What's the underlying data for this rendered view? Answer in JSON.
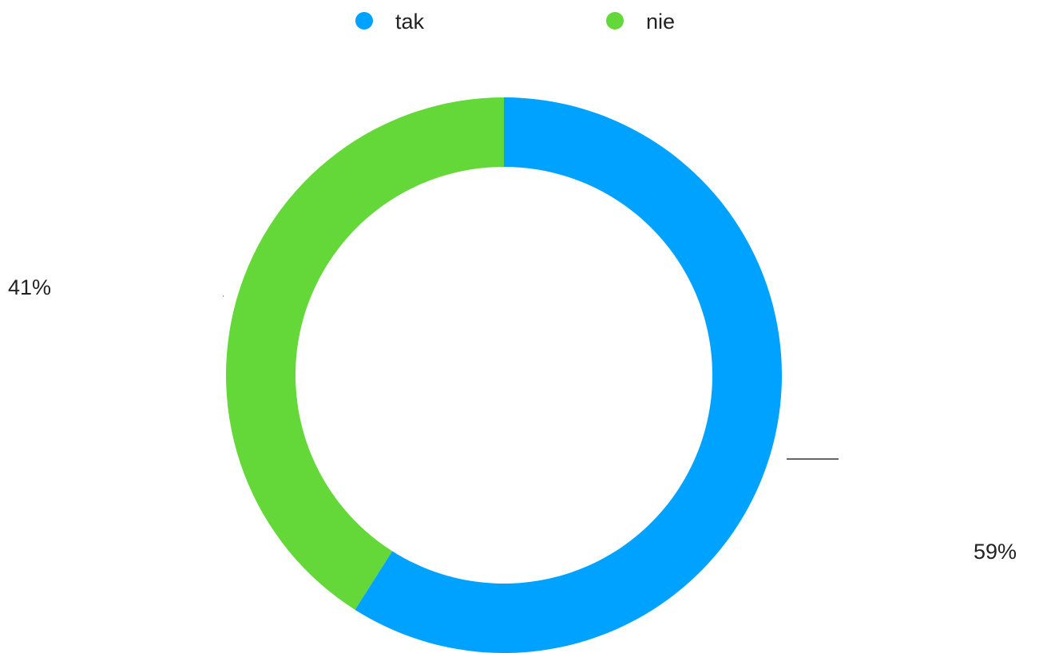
{
  "chart_data": {
    "type": "pie",
    "style": "donut",
    "title": "",
    "legend_position": "top",
    "series": [
      {
        "name": "tak",
        "value": 59,
        "label": "59%",
        "color": "#00A2FF"
      },
      {
        "name": "nie",
        "value": 41,
        "label": "41%",
        "color": "#63D838"
      }
    ]
  }
}
